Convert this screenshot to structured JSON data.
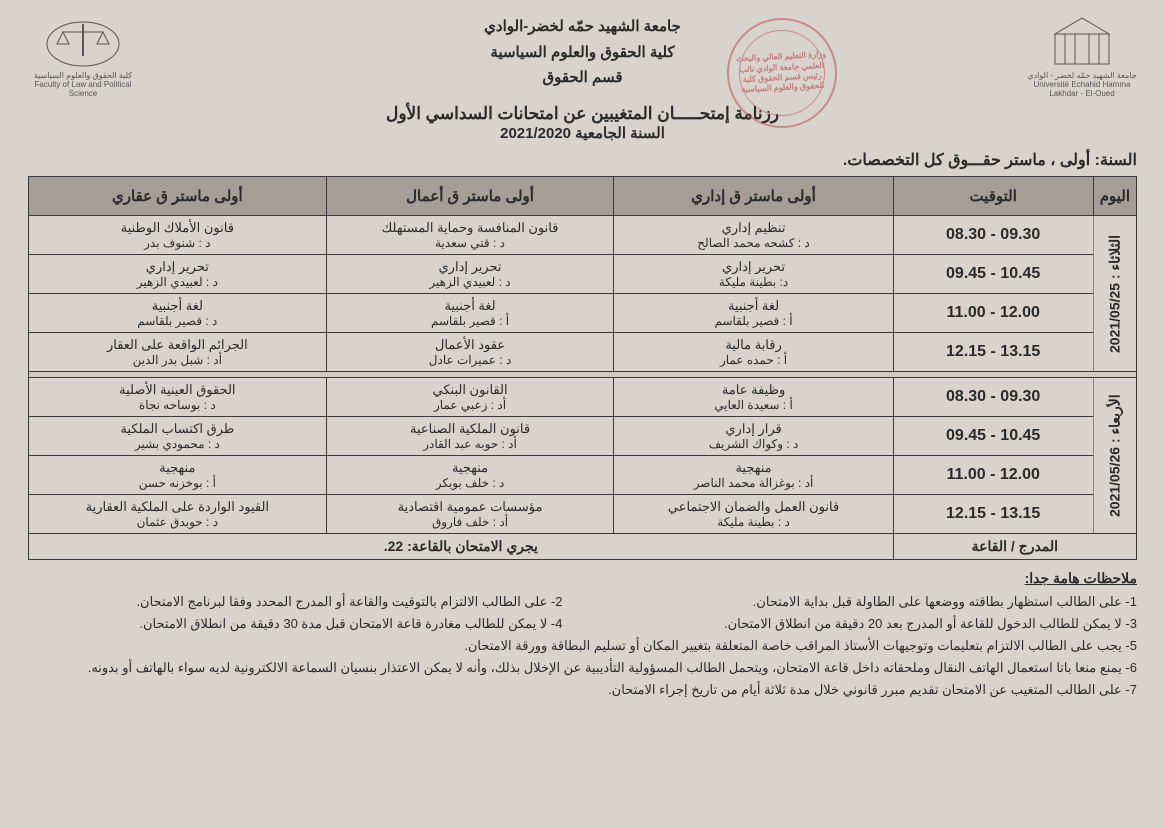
{
  "header": {
    "university": "جامعة الشهيد حمّه لخضر-الوادي",
    "faculty": "كلية الحقوق والعلوم السياسية",
    "department": "قسم الحقوق",
    "logo_right_caption": "جامعة الشهيد حمّه لخضر - الوادي\nUniversité Echahid Hamma Lakhdar - El-Oued",
    "logo_left_caption": "كلية الحقوق والعلوم السياسية\nFaculty of Law and Political Science",
    "stamp_text": "وزارة التعليم العالي والبحث العلمي\nجامعة الوادي\nنائب رئيس قسم\nالحقوق\nكلية الحقوق والعلوم السياسية"
  },
  "title": {
    "line1": "رزنامة إمتحـــــان المتغيبين عن امتحانات السداسي الأول",
    "line2": "السنة الجامعية 2021/2020"
  },
  "year_line": "السنة: أولى ، ماستر حقـــوق كل التخصصات.",
  "columns": {
    "day": "اليوم",
    "time": "التوقيت",
    "track1": "أولى ماستر ق إداري",
    "track2": "أولى ماستر ق أعمال",
    "track3": "أولى ماستر ق عقاري"
  },
  "days": [
    {
      "label": "الثلاثاء : 2021/05/25",
      "rows": [
        {
          "time": "08.30 - 09.30",
          "c1": {
            "s": "تنظيم إداري",
            "t": "د : كشحه محمد الصالح"
          },
          "c2": {
            "s": "قانون المنافسة وحماية المستهلك",
            "t": "د : قتي سعدية"
          },
          "c3": {
            "s": "قانون الأملاك الوطنية",
            "t": "د : شنوف بدر"
          }
        },
        {
          "time": "09.45 - 10.45",
          "c1": {
            "s": "تحرير إداري",
            "t": "د: بطينة مليكة"
          },
          "c2": {
            "s": "تحرير إداري",
            "t": "د : لعبيدي الزهير"
          },
          "c3": {
            "s": "تحرير إداري",
            "t": "د : لعبيدي الزهير"
          }
        },
        {
          "time": "11.00 - 12.00",
          "c1": {
            "s": "لغة أجنبية",
            "t": "أ : قصير بلقاسم"
          },
          "c2": {
            "s": "لغة أجنبية",
            "t": "أ : قصير بلقاسم"
          },
          "c3": {
            "s": "لغة أجنبية",
            "t": "د : قصير بلقاسم"
          }
        },
        {
          "time": "12.15 - 13.15",
          "c1": {
            "s": "رقابة مالية",
            "t": "أ : حمده عمار"
          },
          "c2": {
            "s": "عقود الأعمال",
            "t": "د : عميرات عادل"
          },
          "c3": {
            "s": "الجرائم الواقعة على العقار",
            "t": "أد : شبل بدر الدين"
          }
        }
      ]
    },
    {
      "label": "الأربعاء : 2021/05/26",
      "rows": [
        {
          "time": "08.30 - 09.30",
          "c1": {
            "s": "وظيفة عامة",
            "t": "أ : سعيدة العايي"
          },
          "c2": {
            "s": "القانون البنكي",
            "t": "أد : زعبي عمار"
          },
          "c3": {
            "s": "الحقوق العينية الأصلية",
            "t": "د : بوساحه نجاة"
          }
        },
        {
          "time": "09.45 - 10.45",
          "c1": {
            "s": "قرار إداري",
            "t": "د : وكواك الشريف"
          },
          "c2": {
            "s": "قانون الملكية الصناعية",
            "t": "أد : حوبه عبد القادر"
          },
          "c3": {
            "s": "طرق اكتساب الملكية",
            "t": "د : محمودي بشير"
          }
        },
        {
          "time": "11.00 - 12.00",
          "c1": {
            "s": "منهجية",
            "t": "أد : بوغزالة محمد الناصر"
          },
          "c2": {
            "s": "منهجية",
            "t": "د : خلف بوبكر"
          },
          "c3": {
            "s": "منهجية",
            "t": "أ : بوخزنه حسن"
          }
        },
        {
          "time": "12.15 - 13.15",
          "c1": {
            "s": "قانون العمل والضمان الاجتماعي",
            "t": "د : بطينة مليكة"
          },
          "c2": {
            "s": "مؤسسات عمومية اقتصادية",
            "t": "أد : خلف فاروق"
          },
          "c3": {
            "s": "القيود الواردة على الملكية العقارية",
            "t": "د : حوبدق عثمان"
          }
        }
      ]
    }
  ],
  "hall": {
    "label": "المدرج / القاعة",
    "value": "يجري الامتحان بالقاعة:  22."
  },
  "notes_title": "ملاحظات هامة جدا:",
  "notes_pair_1a": "1-  على الطالب استظهار بطاقته ووضعها على الطاولة قبل بداية الامتحان.",
  "notes_pair_1b": "2-  على الطالب الالتزام بالتوقيت والقاعة أو المدرج المحدد وفقا لبرنامج الامتحان.",
  "notes_pair_2a": "3-  لا يمكن للطالب الدخول للقاعة أو المدرج بعد 20 دقيقة من انطلاق الامتحان.",
  "notes_pair_2b": "4-  لا يمكن للطالب مغادرة قاعة الامتحان قبل مدة 30 دقيقة من انطلاق الامتحان.",
  "notes_5": "5-  يجب على الطالب الالتزام بتعليمات وتوجيهات الأستاذ المراقب خاصة المتعلقة بتغيير المكان أو تسليم البطاقة وورقة الامتحان.",
  "notes_6": "6-  يمنع منعا باتا استعمال الهاتف النقال وملحقاته داخل قاعة الامتحان، ويتحمل الطالب المسؤولية التأديبية عن الإخلال بذلك، وأنه لا يمكن الاعتذار بنسيان السماعة الالكترونية لديه سواء بالهاتف أو بدونه.",
  "notes_7": "7-  على الطالب المتغيب عن الامتحان تقديم مبرر قانوني خلال مدة ثلاثة أيام من تاريخ إجراء الامتحان."
}
